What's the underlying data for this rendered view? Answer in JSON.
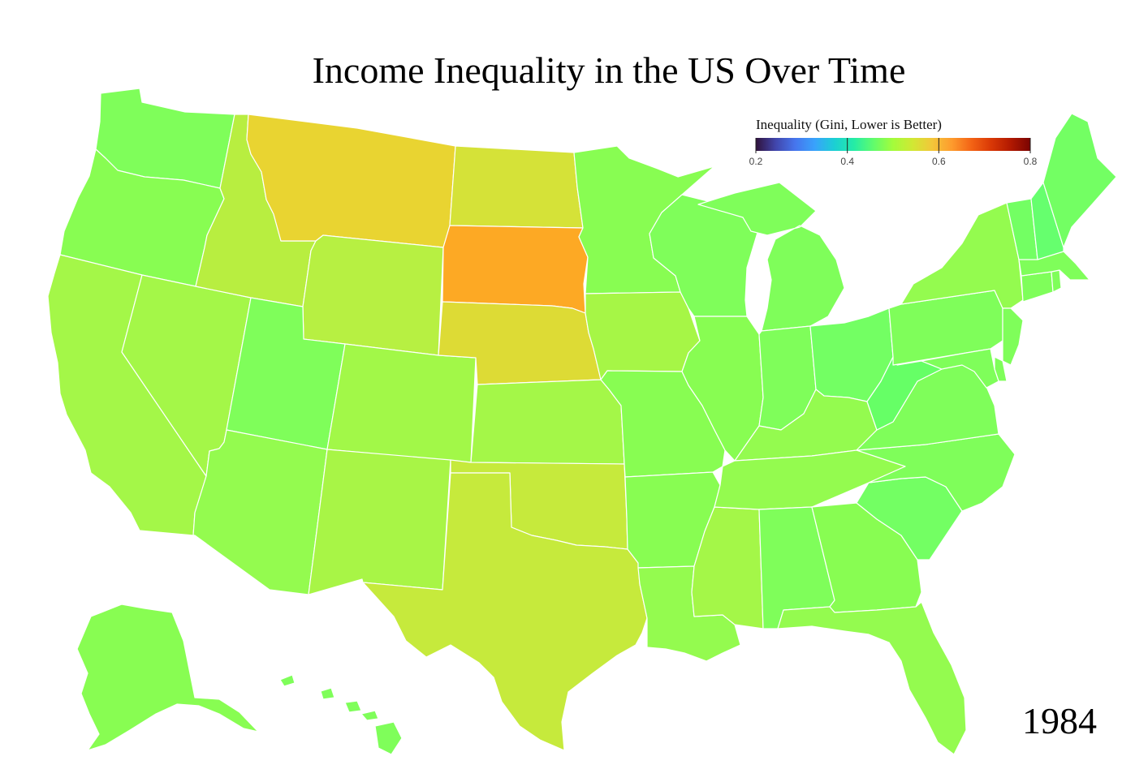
{
  "title": "Income Inequality in the US Over Time",
  "year": "1984",
  "legend": {
    "title": "Inequality (Gini, Lower is Better)",
    "ticks": [
      "0.2",
      "0.4",
      "0.6",
      "0.8"
    ],
    "domain": [
      0.2,
      0.8
    ],
    "colors": [
      "#30123b",
      "#4145ab",
      "#4675ed",
      "#39a2fc",
      "#1bcfd4",
      "#24eca6",
      "#61fc6c",
      "#a4fc3b",
      "#d1e834",
      "#f3c63a",
      "#fe9b2d",
      "#f36315",
      "#d93806",
      "#b11901",
      "#7a0402"
    ]
  },
  "states": {
    "WA": {
      "name": "Washington",
      "color": "#7ffe5a"
    },
    "OR": {
      "name": "Oregon",
      "color": "#88fd52"
    },
    "CA": {
      "name": "California",
      "color": "#a4f748"
    },
    "NV": {
      "name": "Nevada",
      "color": "#a4f748"
    },
    "ID": {
      "name": "Idaho",
      "color": "#b8ee40"
    },
    "MT": {
      "name": "Montana",
      "color": "#e9d431"
    },
    "WY": {
      "name": "Wyoming",
      "color": "#b7f042"
    },
    "UT": {
      "name": "Utah",
      "color": "#7ffe5a"
    },
    "AZ": {
      "name": "Arizona",
      "color": "#94fb4f"
    },
    "CO": {
      "name": "Colorado",
      "color": "#a2f848"
    },
    "NM": {
      "name": "New Mexico",
      "color": "#a8f546"
    },
    "ND": {
      "name": "North Dakota",
      "color": "#d5e238"
    },
    "SD": {
      "name": "South Dakota",
      "color": "#fda924"
    },
    "NE": {
      "name": "Nebraska",
      "color": "#dddb35"
    },
    "KS": {
      "name": "Kansas",
      "color": "#a4f748"
    },
    "OK": {
      "name": "Oklahoma",
      "color": "#c6ea3c"
    },
    "TX": {
      "name": "Texas",
      "color": "#c6ea3c"
    },
    "MN": {
      "name": "Minnesota",
      "color": "#88fd52"
    },
    "IA": {
      "name": "Iowa",
      "color": "#a6f646"
    },
    "MO": {
      "name": "Missouri",
      "color": "#88fd52"
    },
    "AR": {
      "name": "Arkansas",
      "color": "#88fd52"
    },
    "LA": {
      "name": "Louisiana",
      "color": "#94fb4f"
    },
    "WI": {
      "name": "Wisconsin",
      "color": "#7ffe5a"
    },
    "IL": {
      "name": "Illinois",
      "color": "#88fd52"
    },
    "MS": {
      "name": "Mississippi",
      "color": "#a4f748"
    },
    "MI": {
      "name": "Michigan",
      "color": "#7ffe5a"
    },
    "IN": {
      "name": "Indiana",
      "color": "#7ffe5a"
    },
    "OH": {
      "name": "Ohio",
      "color": "#73ff63"
    },
    "KY": {
      "name": "Kentucky",
      "color": "#94fb4f"
    },
    "TN": {
      "name": "Tennessee",
      "color": "#94fb4f"
    },
    "AL": {
      "name": "Alabama",
      "color": "#7ffe5a"
    },
    "GA": {
      "name": "Georgia",
      "color": "#88fd52"
    },
    "FL": {
      "name": "Florida",
      "color": "#94fb4f"
    },
    "SC": {
      "name": "South Carolina",
      "color": "#73ff63"
    },
    "NC": {
      "name": "North Carolina",
      "color": "#7ffe5a"
    },
    "VA": {
      "name": "Virginia",
      "color": "#7ffe5a"
    },
    "WV": {
      "name": "West Virginia",
      "color": "#66ff66"
    },
    "PA": {
      "name": "Pennsylvania",
      "color": "#7ffe5a"
    },
    "NY": {
      "name": "New York",
      "color": "#94fb4f"
    },
    "NJ": {
      "name": "New Jersey",
      "color": "#7ffe5a"
    },
    "DE": {
      "name": "Delaware",
      "color": "#7ffe5a"
    },
    "MD": {
      "name": "Maryland",
      "color": "#7ffe5a"
    },
    "CT": {
      "name": "Connecticut",
      "color": "#7ffe5a"
    },
    "RI": {
      "name": "Rhode Island",
      "color": "#7ffe5a"
    },
    "MA": {
      "name": "Massachusetts",
      "color": "#7ffe5a"
    },
    "VT": {
      "name": "Vermont",
      "color": "#73ff63"
    },
    "NH": {
      "name": "New Hampshire",
      "color": "#66ff6e"
    },
    "ME": {
      "name": "Maine",
      "color": "#73ff63"
    },
    "AK": {
      "name": "Alaska",
      "color": "#88fd52"
    },
    "HI": {
      "name": "Hawaii",
      "color": "#7ffe5a"
    }
  }
}
